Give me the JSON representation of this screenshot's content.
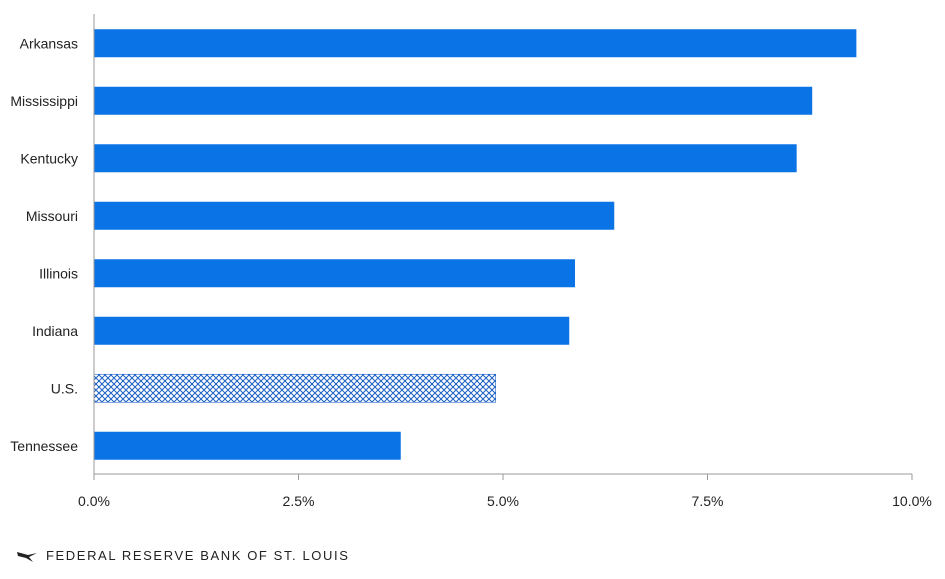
{
  "chart_data": {
    "type": "bar",
    "orientation": "horizontal",
    "categories": [
      "Arkansas",
      "Mississippi",
      "Kentucky",
      "Missouri",
      "Illinois",
      "Indiana",
      "U.S.",
      "Tennessee"
    ],
    "values": [
      9.32,
      8.78,
      8.59,
      6.36,
      5.88,
      5.81,
      4.91,
      3.75
    ],
    "highlight": "U.S.",
    "xlim": [
      0,
      10
    ],
    "xticks": [
      "0.0%",
      "2.5%",
      "5.0%",
      "7.5%",
      "10.0%"
    ],
    "xtick_values": [
      0,
      2.5,
      5,
      7.5,
      10
    ],
    "colors": {
      "bar": "#0a73e5",
      "highlight": "#1a5fc4",
      "axis": "#999999"
    },
    "grid": false,
    "title": "",
    "xlabel": "",
    "ylabel": ""
  },
  "footer": {
    "logo_icon": "eagle-logo-icon",
    "text": "FEDERAL RESERVE BANK OF ST. LOUIS"
  }
}
